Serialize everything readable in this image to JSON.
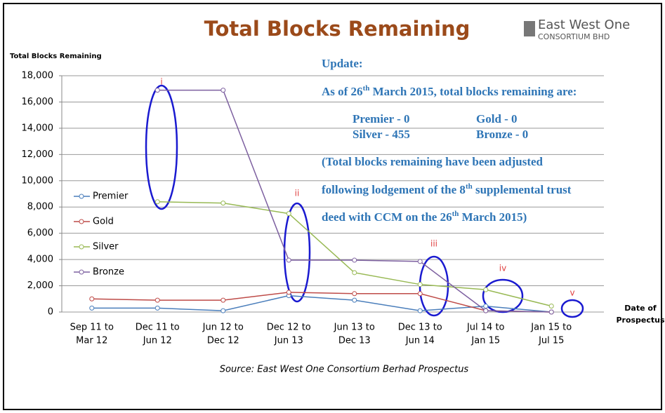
{
  "chart_data": {
    "type": "line",
    "title": "Total Blocks Remaining",
    "logo": [
      "East West One",
      "CONSORTIUM BHD"
    ],
    "y_label": "Total Blocks Remaining",
    "x_label": [
      "Date of",
      "Prospectus"
    ],
    "source": "Source: East West One Consortium Berhad Prospectus",
    "categories": [
      [
        "Sep 11 to",
        "Mar 12"
      ],
      [
        "Dec 11 to",
        "Jun 12"
      ],
      [
        "Jun 12 to",
        "Dec 12"
      ],
      [
        "Dec 12 to",
        "Jun 13"
      ],
      [
        "Jun 13 to",
        "Dec 13"
      ],
      [
        "Dec 13 to",
        "Jun 14"
      ],
      [
        "Jul 14 to",
        "Jan 15"
      ],
      [
        "Jan 15 to",
        "Jul 15"
      ]
    ],
    "series": [
      {
        "name": "Premier",
        "color": "#4a7ebb",
        "values": [
          300,
          300,
          100,
          1250,
          900,
          100,
          450,
          0
        ]
      },
      {
        "name": "Gold",
        "color": "#be4b48",
        "values": [
          1000,
          900,
          900,
          1500,
          1400,
          1400,
          100,
          0
        ]
      },
      {
        "name": "Silver",
        "color": "#98b954",
        "values": [
          null,
          8400,
          8300,
          7500,
          3000,
          2100,
          1700,
          455
        ]
      },
      {
        "name": "Bronze",
        "color": "#7d60a0",
        "values": [
          null,
          16900,
          16900,
          3950,
          3950,
          3850,
          100,
          0
        ]
      }
    ],
    "ylim": [
      0,
      18000
    ],
    "yticks": [
      0,
      {
        "value": 2000,
        "label": "2,000"
      },
      {
        "value": 4000,
        "label": "4,000"
      },
      {
        "value": 6000,
        "label": "6,000"
      },
      {
        "value": 8000,
        "label": "8,000"
      },
      {
        "value": 10000,
        "label": "10,000"
      },
      {
        "value": 12000,
        "label": "12,000"
      },
      {
        "value": 14000,
        "label": "14,000"
      },
      {
        "value": 16000,
        "label": "16,000"
      },
      {
        "value": 18000,
        "label": "18,000"
      }
    ],
    "grid": true,
    "annotations": [
      "i",
      "ii",
      "iii",
      "iv",
      "v"
    ],
    "update": {
      "heading": "Update:",
      "line1": [
        "As of 26",
        "th",
        " March 2015, total blocks remaining are:"
      ],
      "status": [
        "Premier - 0",
        "Gold - 0",
        "Silver - 455",
        "Bronze - 0"
      ],
      "note": [
        [
          "(Total blocks remaining have been adjusted"
        ],
        [
          "following lodgement of the 8",
          "th",
          " supplemental trust"
        ],
        [
          "deed with CCM on the 26",
          "th",
          " March 2015)"
        ]
      ]
    }
  }
}
